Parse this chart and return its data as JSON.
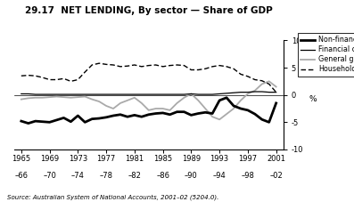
{
  "title": "29.17  NET LENDING, By sector — Share of GDP",
  "source": "Source: Australian System of National Accounts, 2001–02 (5204.0).",
  "ylabel": "%",
  "ylim": [
    -10,
    10
  ],
  "yticks": [
    -10,
    -5,
    0,
    5,
    10
  ],
  "xtick_positions": [
    1965,
    1969,
    1973,
    1977,
    1981,
    1985,
    1989,
    1993,
    1997,
    2001
  ],
  "xticks_top": [
    "1965",
    "1969",
    "1973",
    "1977",
    "1981",
    "1985",
    "1989",
    "1993",
    "1997",
    "2001"
  ],
  "xticks_bot": [
    "–66",
    "–70",
    "–74",
    "–78",
    "–82",
    "–86",
    "–90",
    "–94",
    "–98",
    "–02"
  ],
  "xlim": [
    1964,
    2002
  ],
  "years": [
    1965,
    1966,
    1967,
    1968,
    1969,
    1970,
    1971,
    1972,
    1973,
    1974,
    1975,
    1976,
    1977,
    1978,
    1979,
    1980,
    1981,
    1982,
    1983,
    1984,
    1985,
    1986,
    1987,
    1988,
    1989,
    1990,
    1991,
    1992,
    1993,
    1994,
    1995,
    1996,
    1997,
    1998,
    1999,
    2000,
    2001
  ],
  "non_financial": [
    -4.8,
    -5.2,
    -4.8,
    -4.9,
    -5.0,
    -4.6,
    -4.2,
    -4.9,
    -3.8,
    -5.0,
    -4.4,
    -4.3,
    -4.1,
    -3.8,
    -3.6,
    -4.0,
    -3.7,
    -4.0,
    -3.6,
    -3.4,
    -3.3,
    -3.6,
    -3.1,
    -3.1,
    -3.7,
    -3.4,
    -3.2,
    -3.4,
    -1.0,
    -0.5,
    -2.0,
    -2.5,
    -2.8,
    -3.5,
    -4.5,
    -5.0,
    -1.5
  ],
  "financial": [
    0.2,
    0.2,
    0.1,
    0.1,
    0.1,
    0.1,
    0.1,
    0.1,
    0.1,
    0.1,
    0.1,
    0.1,
    0.1,
    0.1,
    0.1,
    0.1,
    0.1,
    0.1,
    0.1,
    0.1,
    0.1,
    0.1,
    0.1,
    0.1,
    0.2,
    0.1,
    0.1,
    0.1,
    0.2,
    0.3,
    0.4,
    0.5,
    0.5,
    0.6,
    0.6,
    0.5,
    0.5
  ],
  "general_govt": [
    -0.8,
    -0.6,
    -0.5,
    -0.5,
    -0.4,
    -0.3,
    -0.4,
    -0.5,
    -0.4,
    -0.3,
    -0.8,
    -1.2,
    -2.0,
    -2.5,
    -1.5,
    -1.0,
    -0.5,
    -1.5,
    -2.8,
    -2.5,
    -2.5,
    -2.8,
    -1.5,
    -0.5,
    0.2,
    -1.0,
    -2.5,
    -4.0,
    -4.5,
    -3.5,
    -2.5,
    -1.0,
    0.2,
    0.8,
    2.0,
    2.5,
    1.5
  ],
  "households": [
    3.5,
    3.6,
    3.5,
    3.2,
    2.8,
    2.8,
    3.0,
    2.5,
    2.8,
    4.2,
    5.5,
    5.8,
    5.6,
    5.5,
    5.2,
    5.3,
    5.5,
    5.2,
    5.4,
    5.5,
    5.2,
    5.4,
    5.5,
    5.4,
    4.6,
    4.6,
    4.8,
    5.2,
    5.4,
    5.2,
    4.8,
    3.8,
    3.4,
    2.8,
    2.6,
    2.0,
    0.5
  ],
  "non_financial_lw": 2.0,
  "financial_lw": 0.9,
  "general_govt_lw": 1.3,
  "households_lw": 1.0,
  "non_financial_color": "#000000",
  "financial_color": "#000000",
  "general_govt_color": "#aaaaaa",
  "households_color": "#000000",
  "bg_color": "#ffffff"
}
